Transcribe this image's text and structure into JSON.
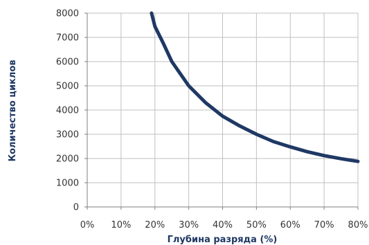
{
  "chart_data": {
    "type": "line",
    "title": "",
    "xlabel": "Глубина разряда (%)",
    "ylabel": "Количество циклов",
    "xlim": [
      0,
      80
    ],
    "ylim": [
      0,
      8000
    ],
    "x_ticks": [
      "0%",
      "10%",
      "20%",
      "30%",
      "40%",
      "50%",
      "60%",
      "70%",
      "80%"
    ],
    "y_ticks": [
      "0",
      "1000",
      "2000",
      "3000",
      "4000",
      "5000",
      "6000",
      "7000",
      "8000"
    ],
    "grid": true,
    "legend": "none",
    "series": [
      {
        "color": "#1f3864",
        "points": [
          [
            19,
            8000
          ],
          [
            20,
            7450
          ],
          [
            22.5,
            6750
          ],
          [
            25,
            6000
          ],
          [
            27.5,
            5500
          ],
          [
            30,
            5000
          ],
          [
            35,
            4300
          ],
          [
            40,
            3750
          ],
          [
            45,
            3350
          ],
          [
            50,
            3000
          ],
          [
            55,
            2700
          ],
          [
            60,
            2480
          ],
          [
            65,
            2280
          ],
          [
            70,
            2120
          ],
          [
            75,
            1990
          ],
          [
            80,
            1880
          ]
        ]
      }
    ]
  }
}
